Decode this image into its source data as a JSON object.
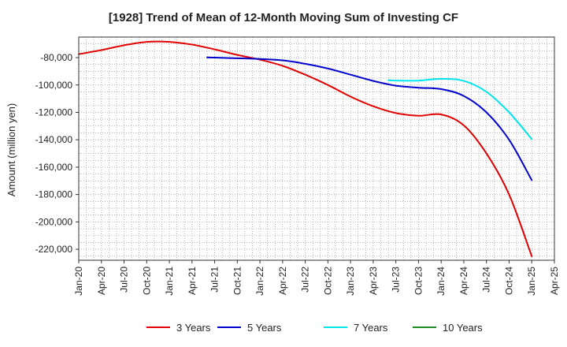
{
  "chart_data": {
    "type": "line",
    "title": "[1928]  Trend of Mean of 12-Month Moving Sum of Investing CF",
    "xlabel": "",
    "ylabel": "Amount (million yen)",
    "grid": true,
    "legend_position": "bottom",
    "ylim": [
      -228000,
      -65000
    ],
    "y_ticks": [
      -80000,
      -100000,
      -120000,
      -140000,
      -160000,
      -180000,
      -200000,
      -220000
    ],
    "y_tick_labels": [
      "-80,000",
      "-100,000",
      "-120,000",
      "-140,000",
      "-160,000",
      "-180,000",
      "-200,000",
      "-220,000"
    ],
    "x_tick_labels": [
      "Jan-20",
      "Apr-20",
      "Jul-20",
      "Oct-20",
      "Jan-21",
      "Apr-21",
      "Jul-21",
      "Oct-21",
      "Jan-22",
      "Apr-22",
      "Jul-22",
      "Oct-22",
      "Jan-23",
      "Apr-23",
      "Jul-23",
      "Oct-23",
      "Jan-24",
      "Apr-24",
      "Jul-24",
      "Oct-24",
      "Jan-25",
      "Apr-25"
    ],
    "series": [
      {
        "name": "3 Years",
        "color": "#e00000",
        "x": [
          "Jan-20",
          "Apr-20",
          "Jul-20",
          "Oct-20",
          "Jan-21",
          "Apr-21",
          "Jul-21",
          "Oct-21",
          "Jan-22",
          "Apr-22",
          "Jul-22",
          "Oct-22",
          "Jan-23",
          "Apr-23",
          "Jul-23",
          "Oct-23",
          "Jan-24",
          "Apr-24",
          "Jul-24",
          "Oct-24",
          "Jan-25"
        ],
        "values": [
          -77500,
          -74500,
          -71000,
          -68500,
          -68500,
          -70500,
          -74000,
          -78000,
          -81500,
          -86000,
          -92500,
          -100000,
          -108500,
          -115500,
          -120500,
          -122500,
          -121500,
          -129500,
          -150000,
          -180000,
          -225000
        ]
      },
      {
        "name": "5 Years",
        "color": "#0000cc",
        "x": [
          "Jun-21",
          "Jul-21",
          "Oct-21",
          "Jan-22",
          "Apr-22",
          "Jul-22",
          "Oct-22",
          "Jan-23",
          "Apr-23",
          "Jul-23",
          "Oct-23",
          "Jan-24",
          "Apr-24",
          "Jul-24",
          "Oct-24",
          "Jan-25"
        ],
        "values": [
          -79800,
          -80000,
          -80500,
          -81000,
          -82000,
          -84500,
          -88000,
          -92500,
          -97000,
          -100500,
          -102000,
          -103000,
          -108000,
          -120000,
          -140000,
          -169500
        ]
      },
      {
        "name": "7 Years",
        "color": "#00e5ee",
        "x": [
          "Jun-23",
          "Jul-23",
          "Oct-23",
          "Jan-24",
          "Apr-24",
          "Jul-24",
          "Oct-24",
          "Jan-25"
        ],
        "values": [
          -96500,
          -96800,
          -96800,
          -95500,
          -97000,
          -105000,
          -120000,
          -139500
        ]
      },
      {
        "name": "10 Years",
        "color": "#228b22",
        "x": [],
        "values": []
      }
    ]
  }
}
